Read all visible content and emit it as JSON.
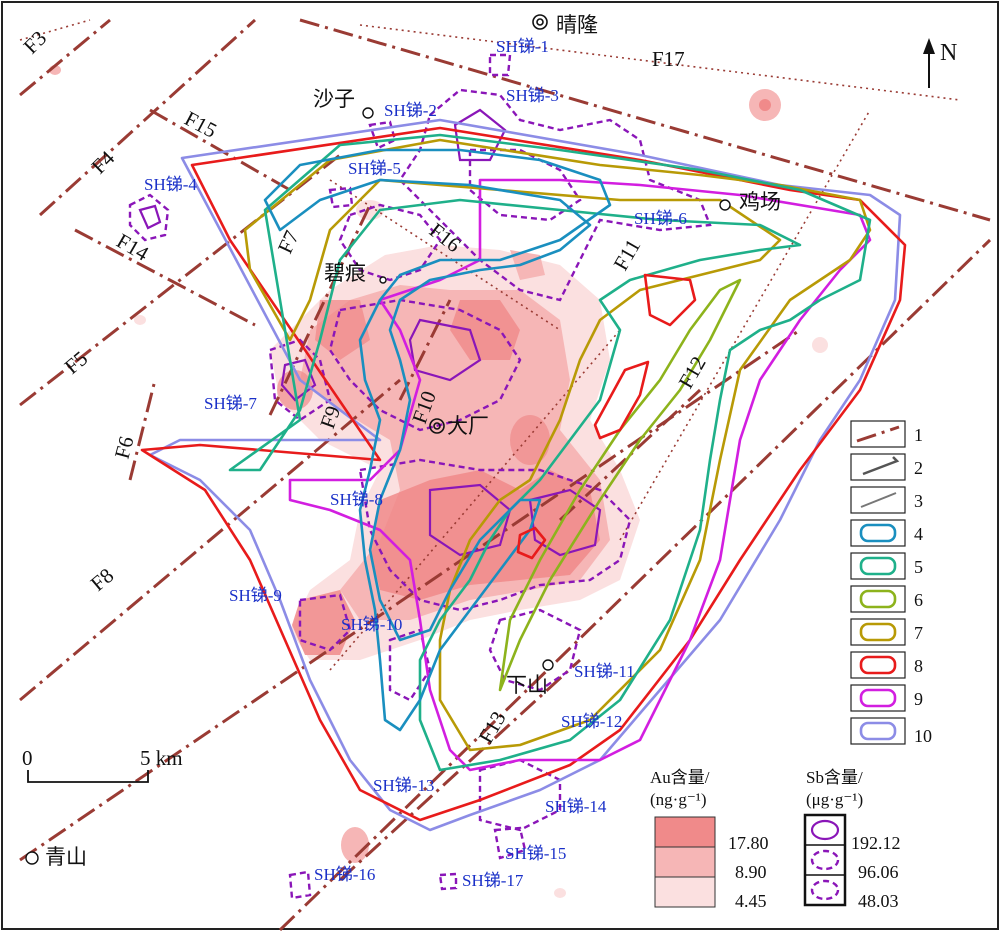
{
  "north_label": "N",
  "scale_bar": {
    "start": "0",
    "end": "5 km"
  },
  "faults": [
    "F3",
    "F4",
    "F5",
    "F6",
    "F7",
    "F8",
    "F9",
    "F10",
    "F11",
    "F12",
    "F13",
    "F14",
    "F15",
    "F16",
    "F17"
  ],
  "places": [
    "晴隆",
    "沙子",
    "鸡场",
    "碧痕",
    "大厂",
    "下山",
    "青山"
  ],
  "sb_sites": [
    "SH锑-1",
    "SH锑-2",
    "SH锑-3",
    "SH锑-4",
    "SH锑-5",
    "SH锑-6",
    "SH锑-7",
    "SH锑-8",
    "SH锑-9",
    "SH锑-10",
    "SH锑-11",
    "SH锑-12",
    "SH锑-13",
    "SH锑-14",
    "SH锑-15",
    "SH锑-16",
    "SH锑-17"
  ],
  "legend": {
    "items": [
      "1",
      "2",
      "3",
      "4",
      "5",
      "6",
      "7",
      "8",
      "9",
      "10"
    ],
    "colors": {
      "4": "#1a8fbf",
      "5": "#1fb08a",
      "6": "#8db31c",
      "7": "#b89a06",
      "8": "#e81b1b",
      "9": "#d21ee0",
      "10": "#8c8ce6"
    }
  },
  "au_legend": {
    "title_line1": "Au含量/",
    "title_line2": "(ng·g⁻¹)",
    "levels": [
      "17.80",
      "8.90",
      "4.45"
    ],
    "colors": [
      "#f08a8a",
      "#f6b6b6",
      "#fbe0e0"
    ]
  },
  "sb_legend": {
    "title_line1": "Sb含量/",
    "title_line2": "(μg·g⁻¹)",
    "levels": [
      "192.12",
      "96.06",
      "48.03"
    ]
  }
}
